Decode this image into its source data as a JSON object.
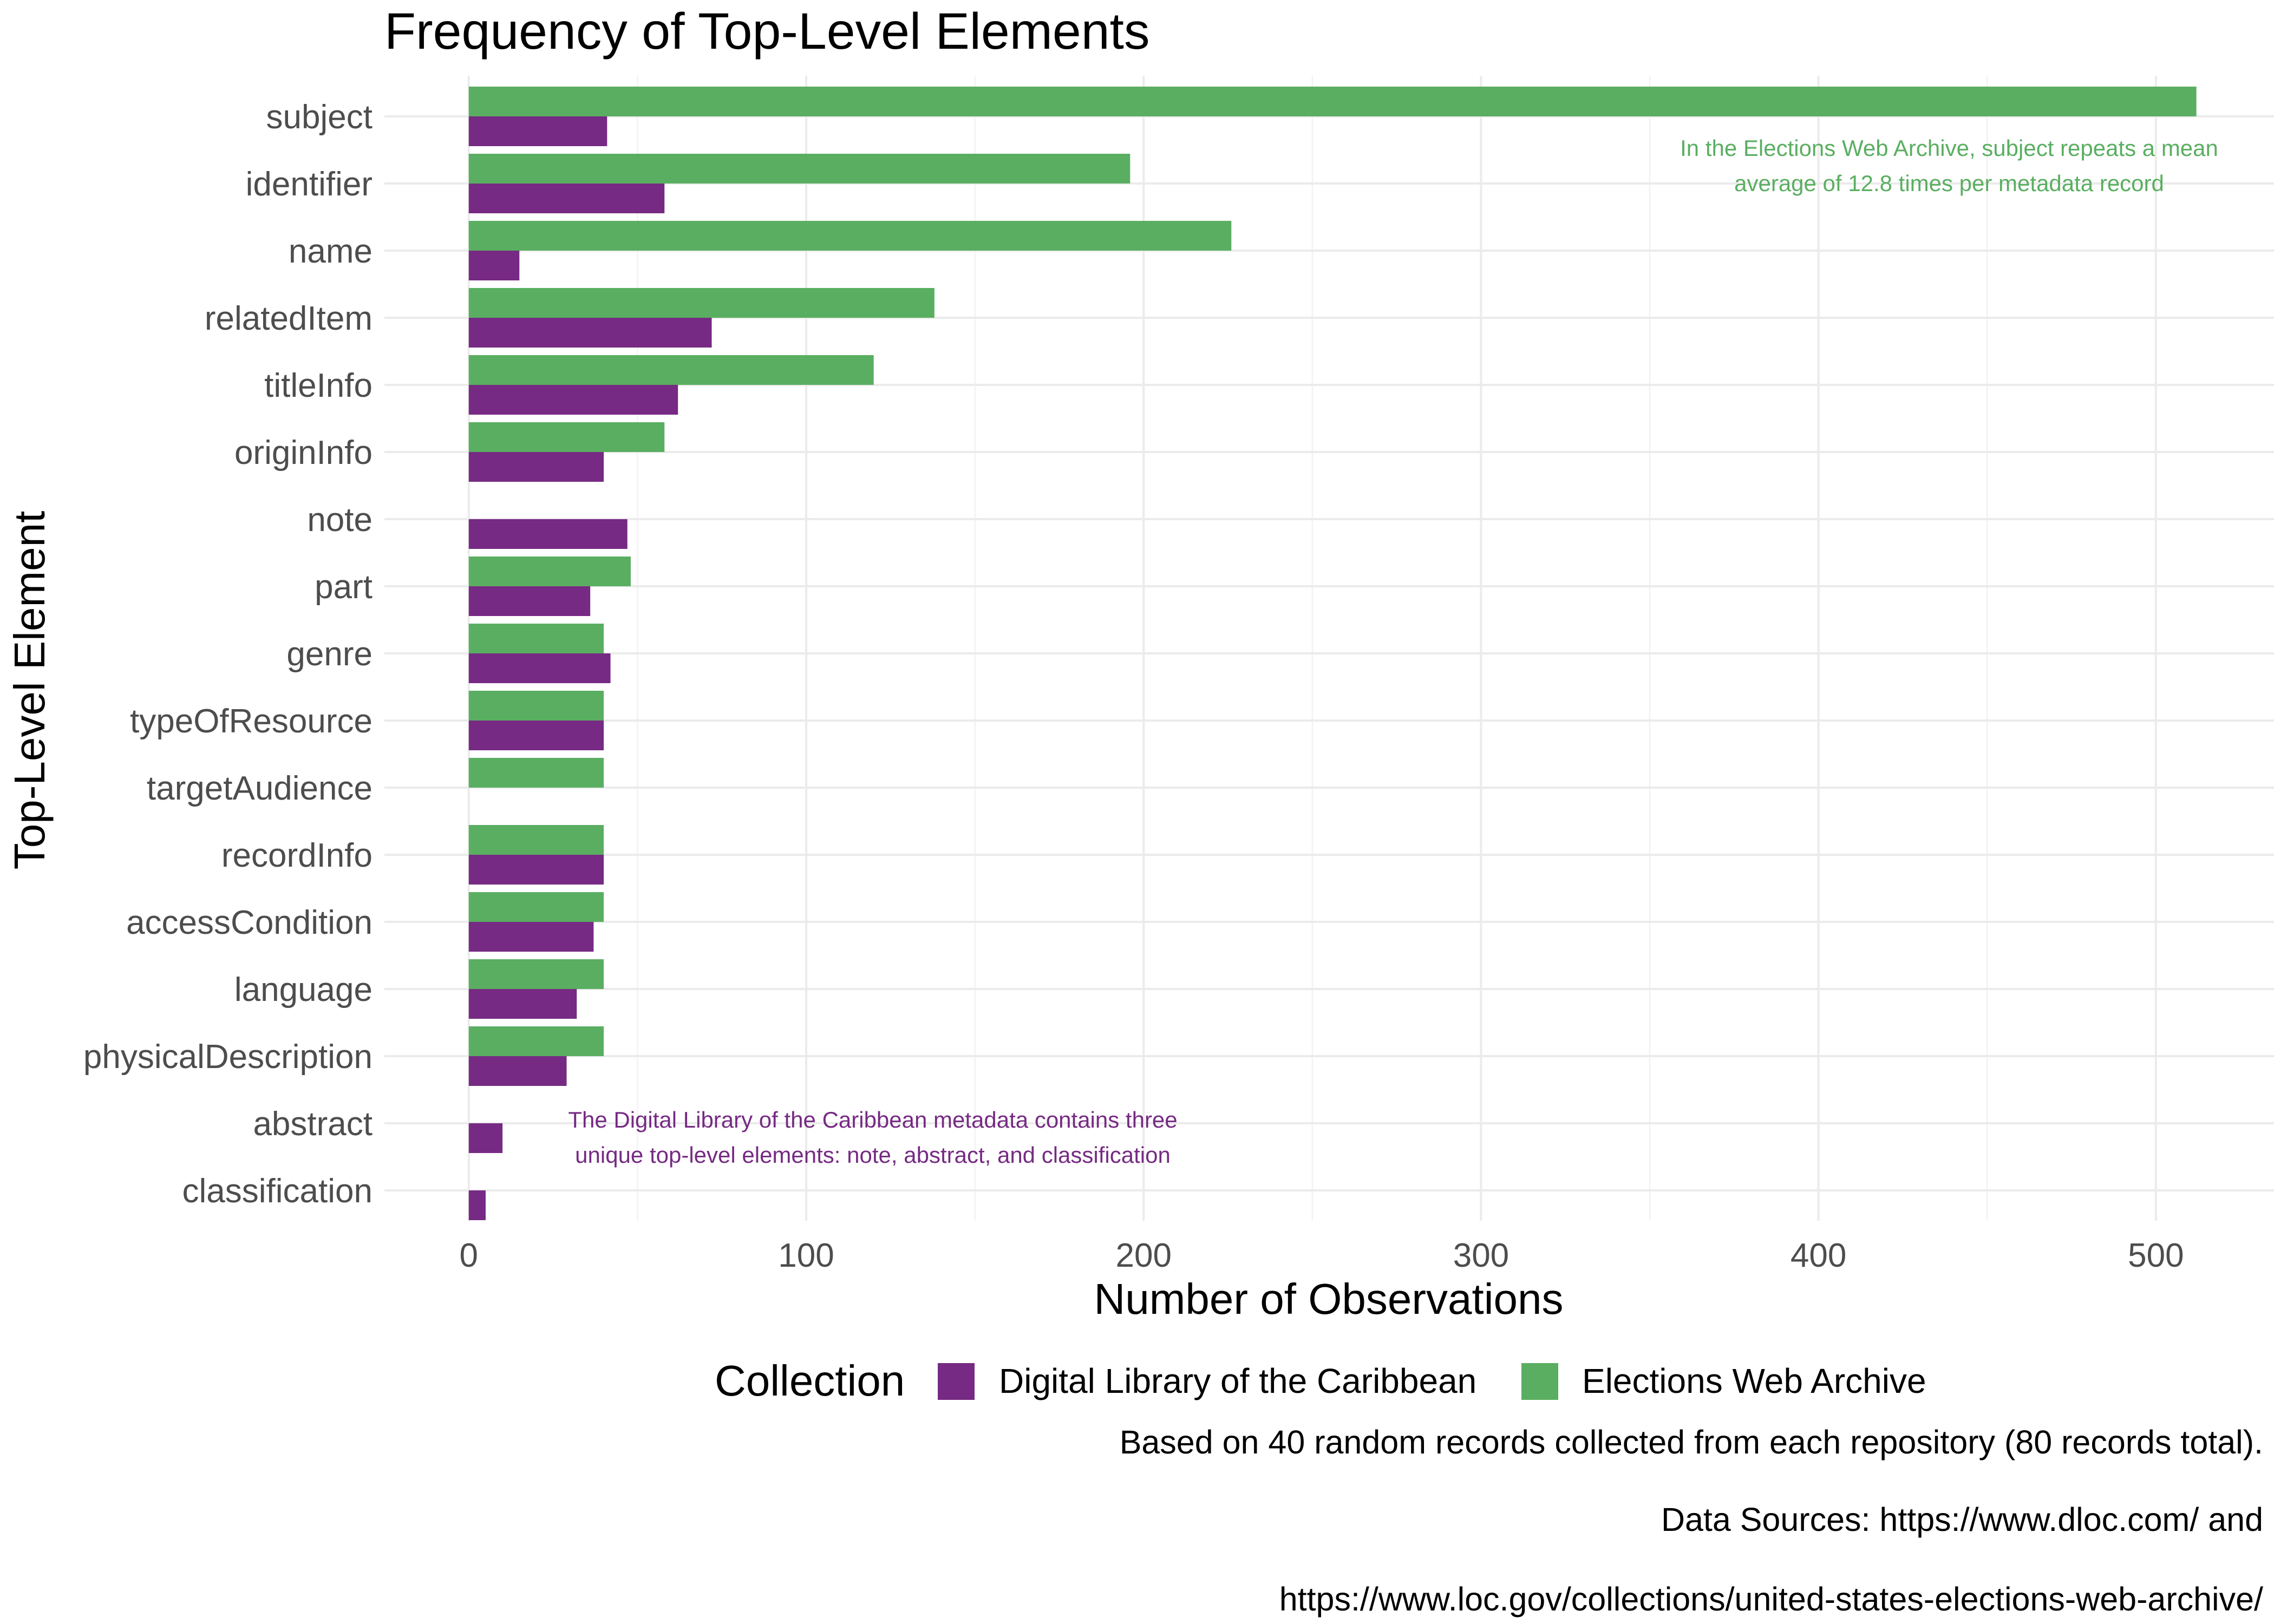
{
  "chart_data": {
    "type": "bar",
    "orientation": "horizontal",
    "title": "Frequency of Top-Level Elements",
    "xlabel": "Number of Observations",
    "ylabel": "Top-Level Element",
    "xlim": [
      -25,
      535
    ],
    "xticks": [
      0,
      100,
      200,
      300,
      400,
      500
    ],
    "grid": true,
    "categories": [
      "subject",
      "identifier",
      "name",
      "relatedItem",
      "titleInfo",
      "originInfo",
      "note",
      "part",
      "genre",
      "typeOfResource",
      "targetAudience",
      "recordInfo",
      "accessCondition",
      "language",
      "physicalDescription",
      "abstract",
      "classification"
    ],
    "series": [
      {
        "name": "Elections Web Archive",
        "color": "#5aae61",
        "values": [
          512,
          196,
          226,
          138,
          120,
          58,
          null,
          48,
          40,
          40,
          40,
          40,
          40,
          40,
          40,
          null,
          null
        ]
      },
      {
        "name": "Digital Library of the Caribbean",
        "color": "#762a83",
        "values": [
          41,
          58,
          15,
          72,
          62,
          40,
          47,
          36,
          42,
          40,
          null,
          40,
          37,
          32,
          29,
          10,
          5
        ]
      }
    ],
    "annotations": [
      {
        "lines": [
          "In the Elections Web Archive, subject repeats a mean",
          "average of 12.8 times per metadata record"
        ],
        "color": "#5aae61",
        "anchor_value": 512,
        "anchor_category": "subject"
      },
      {
        "lines": [
          "The Digital Library of the Caribbean metadata contains three",
          "unique top-level elements: note, abstract, and classification"
        ],
        "color": "#762a83",
        "anchor_value": 220,
        "anchor_category": "abstract"
      }
    ],
    "legend": {
      "title": "Collection",
      "position": "bottom",
      "entries": [
        {
          "label": "Digital Library of the Caribbean",
          "color": "#762a83"
        },
        {
          "label": "Elections Web Archive",
          "color": "#5aae61"
        }
      ]
    },
    "caption": [
      "Based on 40 random records collected from each repository (80 records total).",
      "Data Sources: https://www.dloc.com/ and",
      "https://www.loc.gov/collections/united-states-elections-web-archive/"
    ]
  }
}
